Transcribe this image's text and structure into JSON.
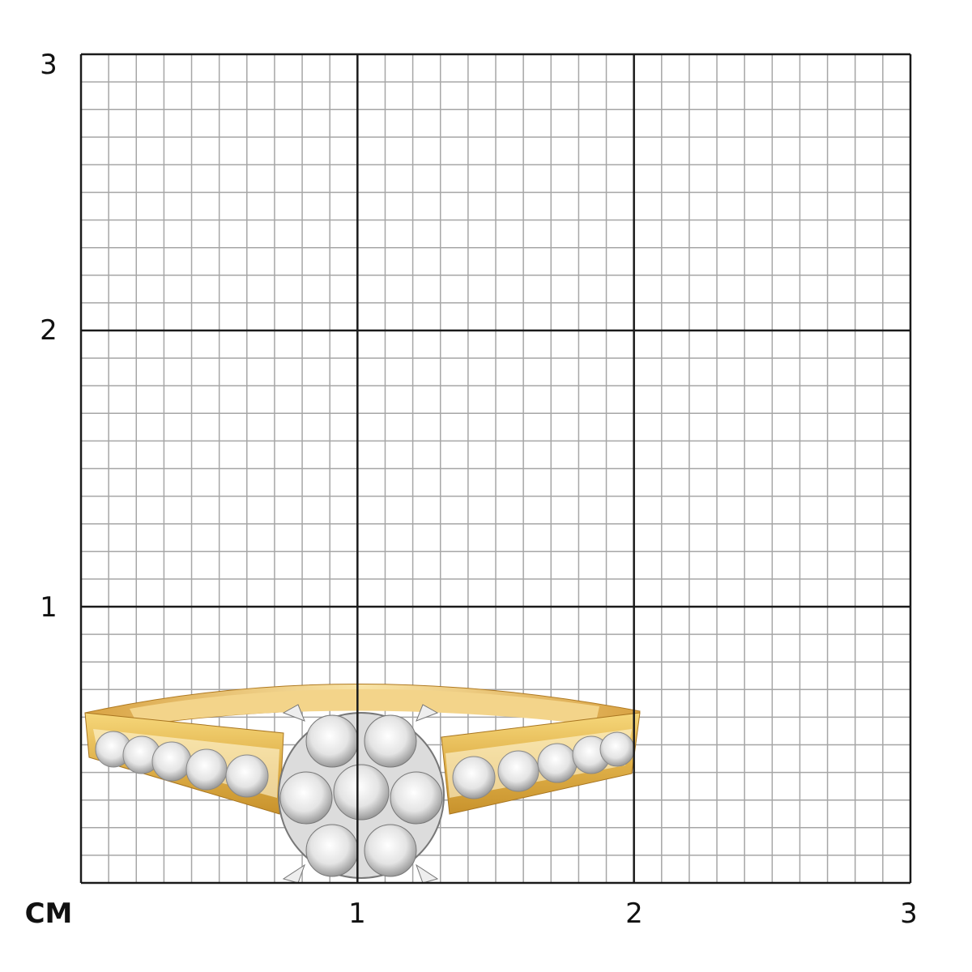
{
  "scale": {
    "unit_label": "CM",
    "y_labels": [
      "1",
      "2",
      "3"
    ],
    "x_labels": [
      "1",
      "2",
      "3"
    ],
    "range_cm": [
      0,
      3
    ],
    "minor_divisions_per_cm": 10,
    "major_line_color": "#1a1a1a",
    "minor_line_color": "#a6a6a6"
  },
  "product": {
    "type": "ring",
    "metal_color": "#e3b84e",
    "setting_color": "#e9e9e9",
    "stone_color": "#f4f4f4"
  }
}
